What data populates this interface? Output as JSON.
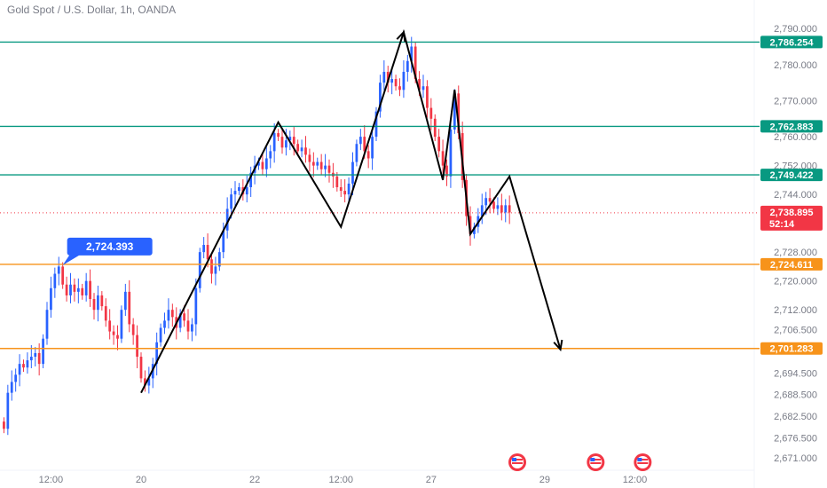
{
  "header": {
    "title": "Gold Spot / U.S. Dollar, 1h, OANDA"
  },
  "colors": {
    "up": "#2962ff",
    "down": "#f23645",
    "green_line": "#089981",
    "orange_line": "#f7931a",
    "current_price": "#f23645",
    "pattern": "#000000",
    "callout": "#2962ff",
    "axis_text": "#787b86"
  },
  "chart_data": {
    "type": "candlestick",
    "instrument": "Gold Spot / U.S. Dollar",
    "interval": "1h",
    "ylim": [
      2668.0,
      2793.0
    ],
    "y_ticks": [
      "2,790.000",
      "2,780.000",
      "2,770.000",
      "2,760.000",
      "2,752.000",
      "2,744.000",
      "2,728.000",
      "2,720.000",
      "2,712.000",
      "2,706.500",
      "2,694.500",
      "2,688.500",
      "2,682.500",
      "2,676.500",
      "2,671.000"
    ],
    "x_ticks": [
      {
        "label": "12:00",
        "t": 13
      },
      {
        "label": "20",
        "t": 36
      },
      {
        "label": "22",
        "t": 65
      },
      {
        "label": "12:00",
        "t": 87
      },
      {
        "label": "27",
        "t": 110
      },
      {
        "label": "29",
        "t": 139
      },
      {
        "label": "12:00",
        "t": 162
      }
    ],
    "xlim": [
      0,
      192
    ],
    "horizontal_levels": [
      {
        "value": 2786.254,
        "label": "2,786.254",
        "color": "green"
      },
      {
        "value": 2762.883,
        "label": "2,762.883",
        "color": "green"
      },
      {
        "value": 2749.422,
        "label": "2,749.422",
        "color": "green"
      },
      {
        "value": 2724.611,
        "label": "2,724.611",
        "color": "orange"
      },
      {
        "value": 2701.283,
        "label": "2,701.283",
        "color": "orange"
      }
    ],
    "current_price": {
      "value": 2738.895,
      "label": "2,738.895",
      "countdown": "52:14"
    },
    "callout": {
      "value": 2724.393,
      "label": "2,724.393",
      "t": 16
    },
    "pattern_path": [
      {
        "t": 36,
        "v": 2689
      },
      {
        "t": 71,
        "v": 2764
      },
      {
        "t": 87,
        "v": 2735
      },
      {
        "t": 103,
        "v": 2789
      },
      {
        "t": 113,
        "v": 2748
      },
      {
        "t": 116,
        "v": 2773
      },
      {
        "t": 120,
        "v": 2733
      },
      {
        "t": 130,
        "v": 2749
      },
      {
        "t": 143,
        "v": 2701
      }
    ],
    "event_markers_t": [
      132,
      152,
      164
    ],
    "series": [
      {
        "close": [
          2679,
          2689,
          2692,
          2694,
          2697,
          2696,
          2698,
          2699,
          2700,
          2697,
          2704,
          2712,
          2718,
          2722,
          2724,
          2719,
          2716,
          2719,
          2717,
          2718,
          2716,
          2720,
          2715,
          2712,
          2716,
          2713,
          2709,
          2706,
          2705,
          2704,
          2712,
          2717,
          2708,
          2705,
          2699,
          2693,
          2691,
          2693,
          2697,
          2703,
          2707,
          2709,
          2712,
          2710,
          2707,
          2711,
          2709,
          2706,
          2708,
          2718,
          2728,
          2730,
          2726,
          2722,
          2724,
          2728,
          2734,
          2740,
          2744,
          2745,
          2746,
          2744,
          2746,
          2750,
          2752,
          2753,
          2751,
          2754,
          2756,
          2761,
          2760,
          2757,
          2759,
          2760,
          2758,
          2756,
          2757,
          2755,
          2753,
          2752,
          2753,
          2751,
          2752,
          2750,
          2749,
          2746,
          2745,
          2744,
          2747,
          2753,
          2758,
          2760,
          2756,
          2754,
          2760,
          2767,
          2775,
          2778,
          2775,
          2776,
          2774,
          2773,
          2778,
          2781,
          2785,
          2776,
          2773,
          2774,
          2768,
          2765,
          2760,
          2756,
          2752,
          2749,
          2762,
          2772,
          2761,
          2748,
          2738,
          2733,
          2735,
          2738,
          2741,
          2743,
          2742,
          2740,
          2741,
          2739,
          2741,
          2739
        ]
      }
    ]
  }
}
